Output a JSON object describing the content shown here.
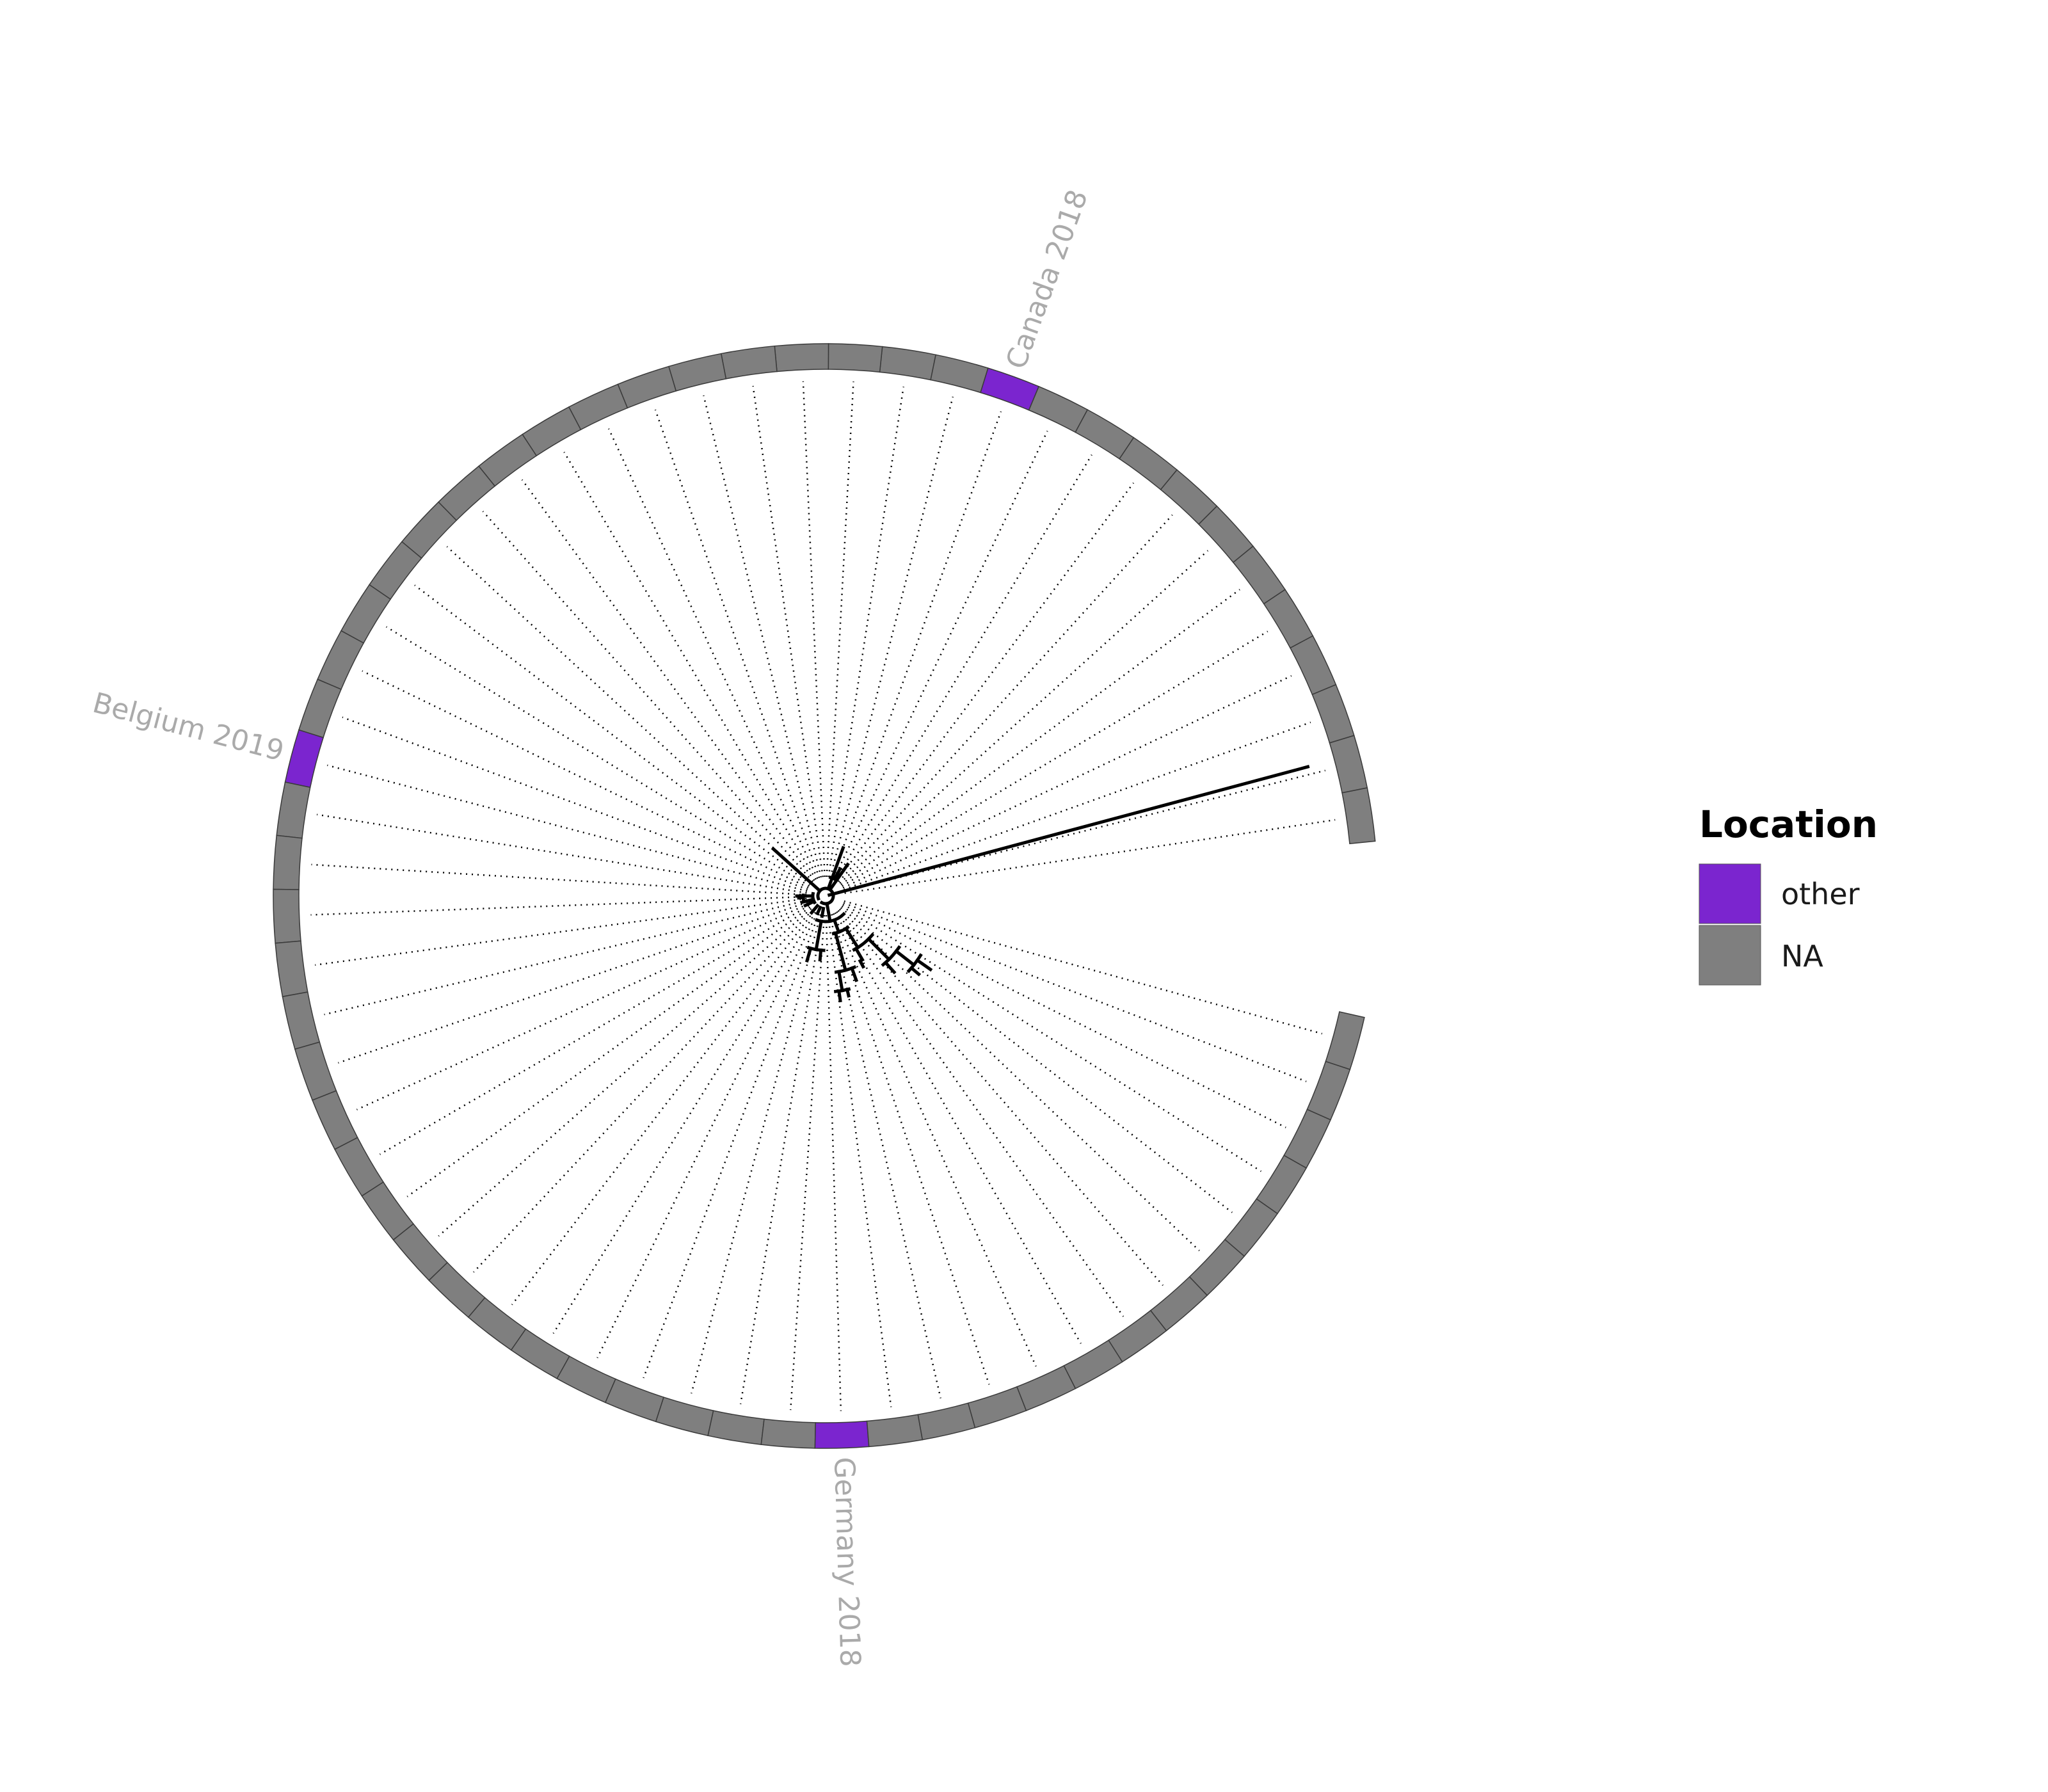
{
  "colors": {
    "other": "#7b25cf",
    "na": "#7f7f7f",
    "branch": "#000000",
    "tip_label": "#aaaaaa"
  },
  "ring": {
    "segment_count": 61,
    "highlighted": [
      {
        "index": 47,
        "label": "Germany 2018",
        "category": "other"
      },
      {
        "index": 28,
        "label": "Belgium 2019",
        "category": "other"
      },
      {
        "index": 11,
        "label": "Canada 2018",
        "category": "other"
      }
    ]
  },
  "legend": {
    "title": "Location",
    "items": [
      {
        "key": "other",
        "label": "other"
      },
      {
        "key": "na",
        "label": "NA"
      }
    ]
  }
}
